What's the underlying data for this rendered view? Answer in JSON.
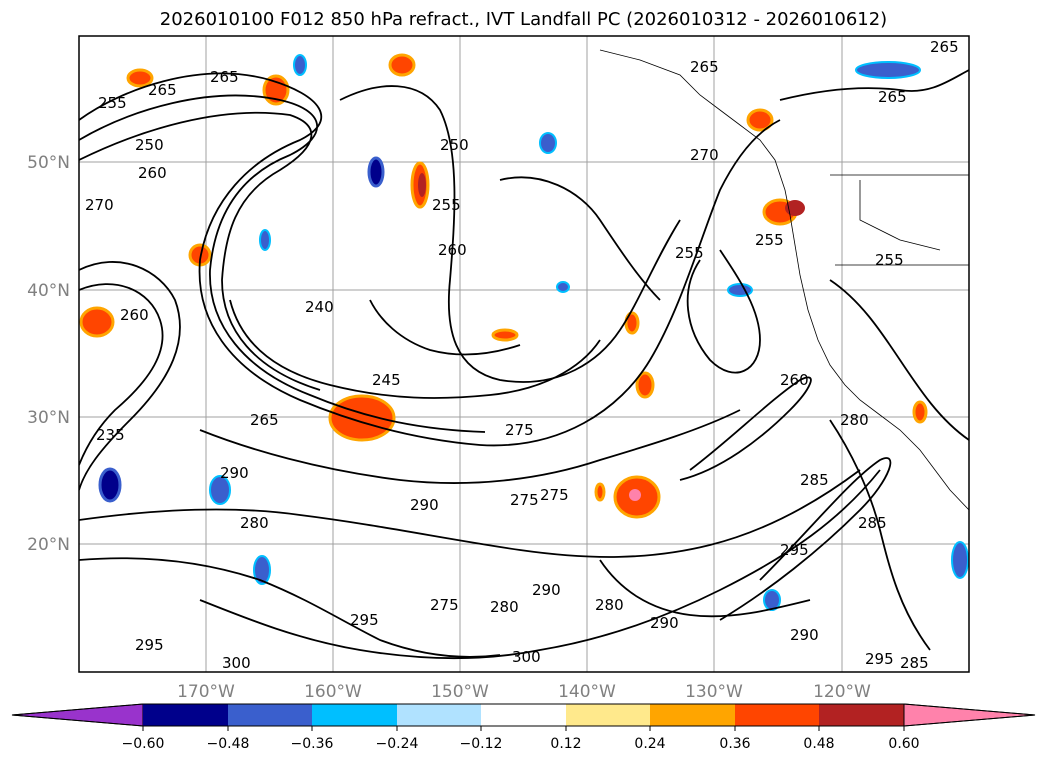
{
  "title": "2026010100 F012 850 hPa refract., IVT Landfall PC (2026010312 - 2026010612)",
  "latitude_labels": [
    "50°N",
    "40°N",
    "30°N",
    "20°N"
  ],
  "longitude_labels": [
    "170°W",
    "160°W",
    "150°W",
    "140°W",
    "130°W",
    "120°W"
  ],
  "colorbar": {
    "tick_labels": [
      "−0.60",
      "−0.48",
      "−0.36",
      "−0.24",
      "−0.12",
      "0.12",
      "0.24",
      "0.36",
      "0.48",
      "0.60"
    ],
    "colors": [
      "#9933cc",
      "#00008b",
      "#3a5fcd",
      "#00bfff",
      "#b0e2ff",
      "#ffffff",
      "#ffe98c",
      "#ffa500",
      "#ff4500",
      "#b22222",
      "#ff82ab",
      "#ff82ab"
    ]
  },
  "contour_labels": [
    "265",
    "255",
    "265",
    "250",
    "260",
    "265",
    "270",
    "265",
    "255",
    "265",
    "250",
    "255",
    "260",
    "240",
    "245",
    "275",
    "265",
    "290",
    "255",
    "290",
    "275",
    "255",
    "260",
    "280",
    "285",
    "275",
    "280",
    "290",
    "280",
    "300",
    "295",
    "300",
    "295",
    "285",
    "290",
    "285",
    "275",
    "235",
    "260",
    "270",
    "295",
    "280",
    "290",
    "295"
  ]
}
